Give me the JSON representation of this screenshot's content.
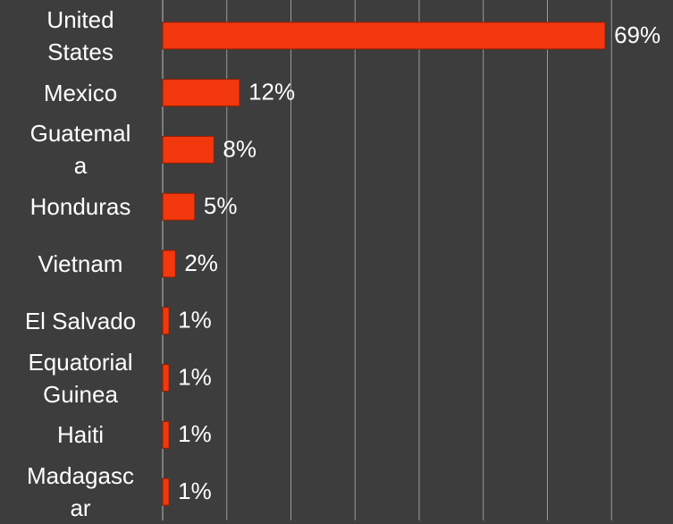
{
  "chart_data": {
    "type": "bar",
    "orientation": "horizontal",
    "categories": [
      "United\nStates",
      "Mexico",
      "Guatemal\na",
      "Honduras",
      "Vietnam",
      "El Salvado",
      "Equatorial\nGuinea",
      "Haiti",
      "Madagasc\nar"
    ],
    "values": [
      69,
      12,
      8,
      5,
      2,
      1,
      1,
      1,
      1
    ],
    "value_labels": [
      "69%",
      "12%",
      "8%",
      "5%",
      "2%",
      "1%",
      "1%",
      "1%",
      "1%"
    ],
    "color": "#f2380c",
    "xlim": [
      0,
      80
    ],
    "xticks": [
      0,
      10,
      20,
      30,
      40,
      50,
      60,
      70
    ],
    "grid": true
  }
}
